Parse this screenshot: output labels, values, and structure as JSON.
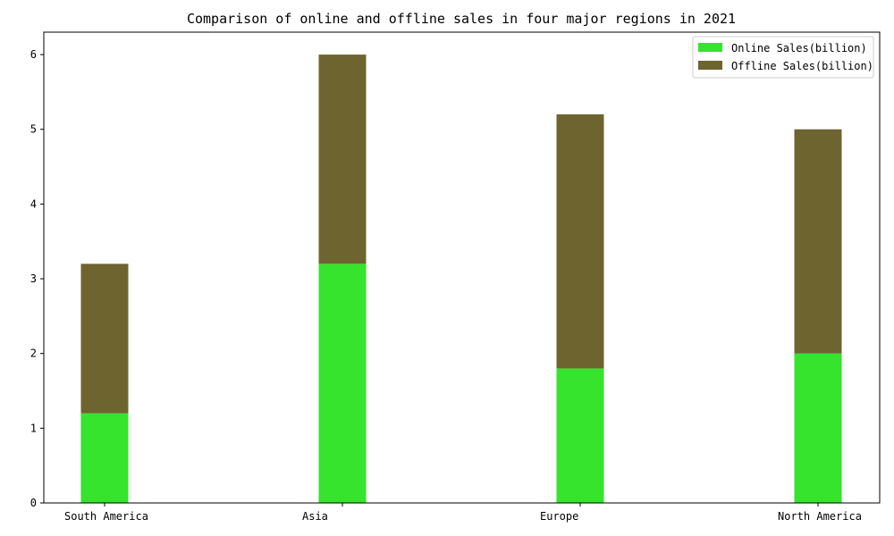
{
  "chart_data": {
    "type": "bar",
    "stacked": true,
    "title": "Comparison of online and offline sales in four major regions in 2021",
    "xlabel": "",
    "ylabel": "",
    "categories": [
      "South America",
      "Asia",
      "Europe",
      "North America"
    ],
    "series": [
      {
        "name": "Online Sales(billion)",
        "values": [
          1.2,
          3.2,
          1.8,
          2.0
        ],
        "color": "#36e32d"
      },
      {
        "name": "Offline Sales(billion)",
        "values": [
          2.0,
          2.8,
          3.4,
          3.0
        ],
        "color": "#6d6430"
      }
    ],
    "ylim": [
      0,
      6.3
    ],
    "yticks": [
      0,
      1,
      2,
      3,
      4,
      5,
      6
    ],
    "grid": false,
    "legend_position": "top-right"
  }
}
